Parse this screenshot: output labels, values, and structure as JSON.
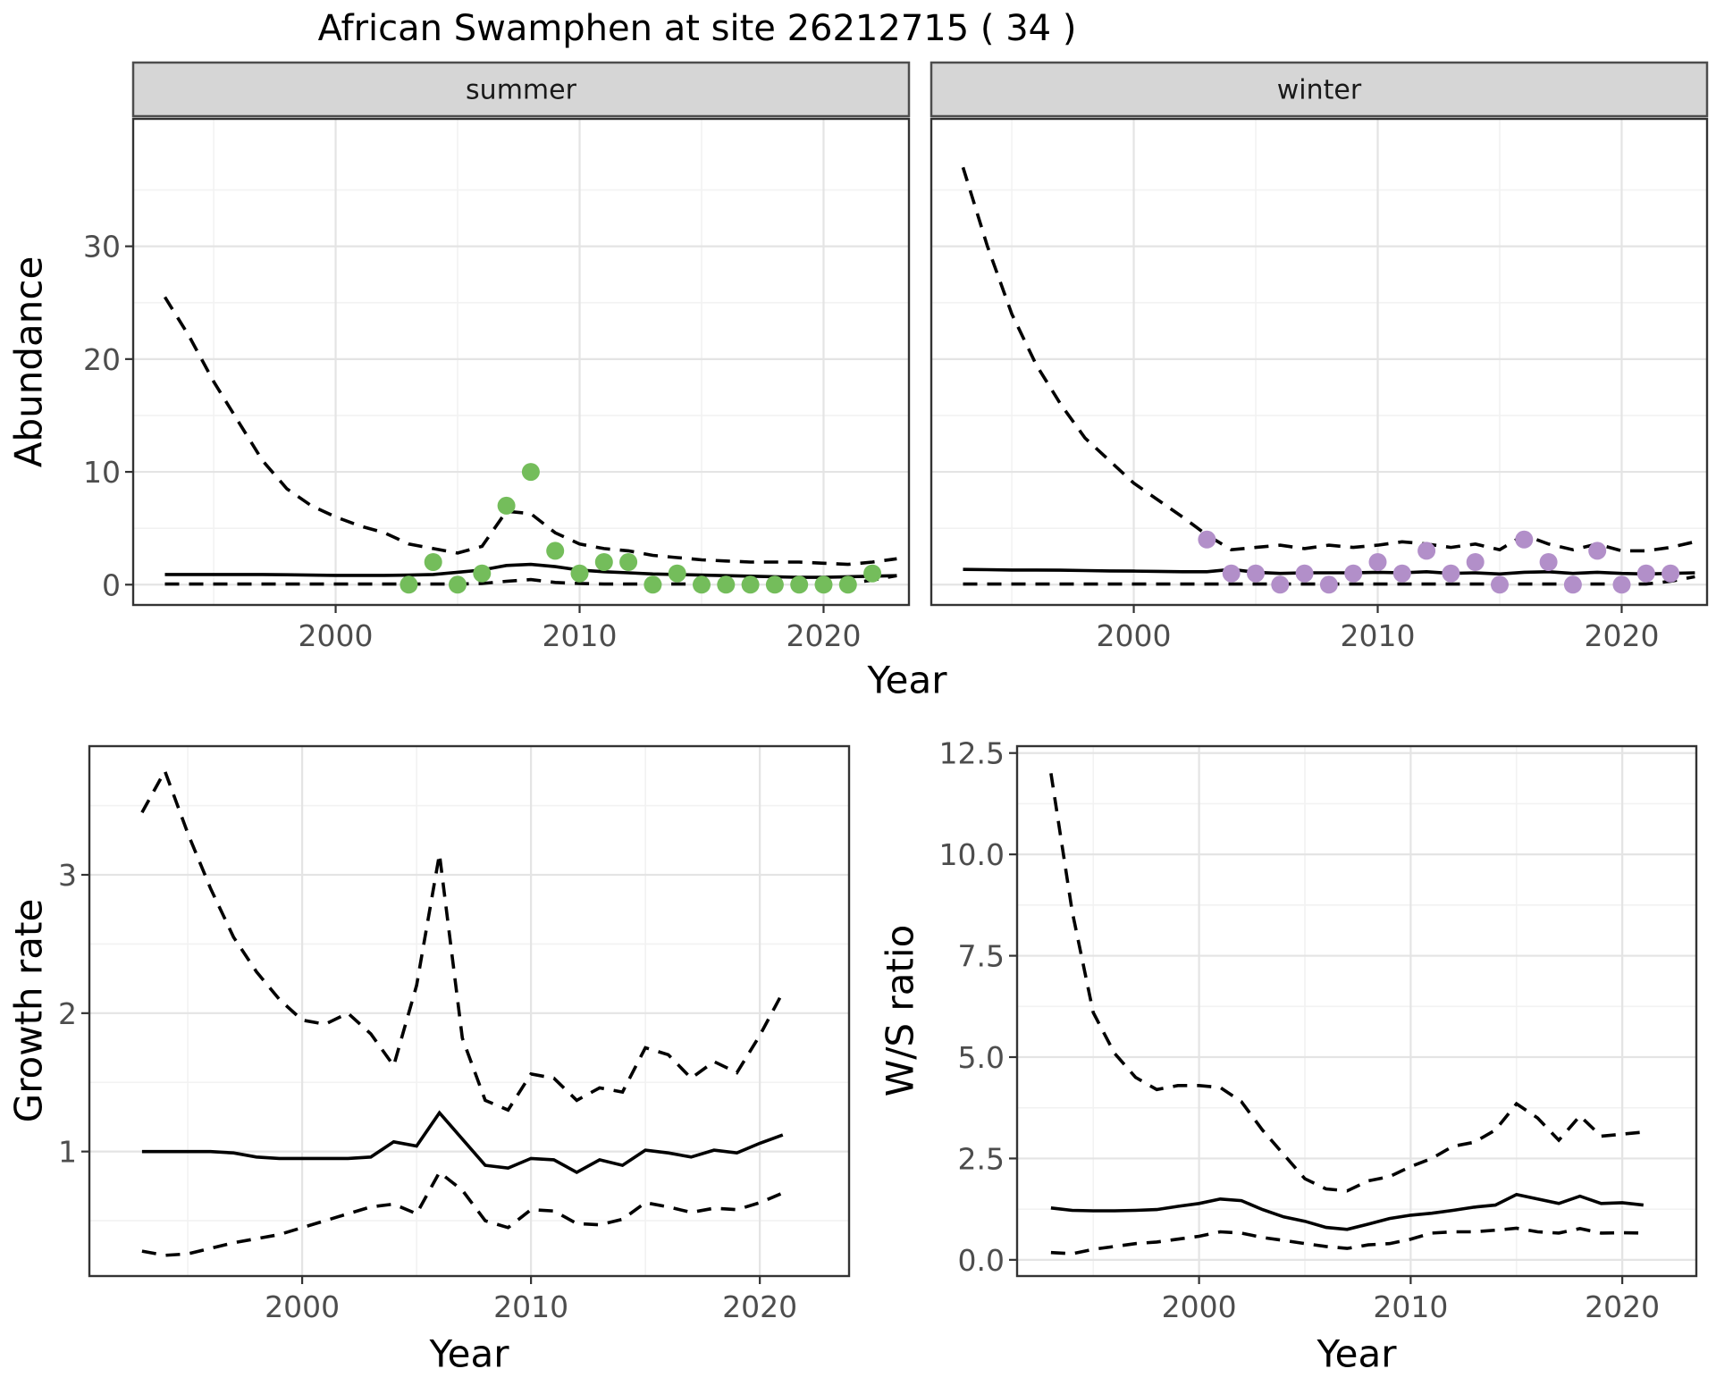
{
  "header": {
    "title": "African Swamphen at site 26212715 ( 34 )"
  },
  "colors": {
    "background": "#ffffff",
    "line": "#000000",
    "points_summer": "#74BD5B",
    "points_winter": "#B28FC9",
    "grid_major": "#E4E4E4",
    "grid_minor": "#F2F2F2",
    "panel_border": "#333333",
    "strip_bg": "#D6D6D6",
    "strip_border": "#4D4D4D",
    "tick_text": "#4D4D4D"
  },
  "chart_data": [
    {
      "id": "abundance-summer",
      "type": "line+scatter",
      "facet_label": "summer",
      "xlabel": "Year",
      "ylabel": "Abundance",
      "xlim": [
        1991.7,
        2023.5
      ],
      "ylim": [
        -1.8,
        41.3
      ],
      "x_ticks": {
        "values": [
          2000,
          2010,
          2020
        ],
        "labels": [
          "2000",
          "2010",
          "2020"
        ]
      },
      "y_ticks": {
        "values": [
          0,
          10,
          20,
          30
        ],
        "labels": [
          "0",
          "10",
          "20",
          "30"
        ]
      },
      "series": [
        {
          "name": "upper-ci",
          "style": "dashed",
          "x": [
            1993,
            1994,
            1995,
            1996,
            1997,
            1998,
            1999,
            2000,
            2001,
            2002,
            2003,
            2004,
            2005,
            2006,
            2007,
            2008,
            2009,
            2010,
            2011,
            2012,
            2013,
            2014,
            2015,
            2016,
            2017,
            2018,
            2019,
            2020,
            2021,
            2022,
            2023
          ],
          "y": [
            25.5,
            22,
            18,
            14.5,
            11,
            8.5,
            7,
            6,
            5.2,
            4.6,
            3.6,
            3.2,
            2.8,
            3.4,
            6.5,
            6.3,
            4.6,
            3.6,
            3.2,
            3.0,
            2.6,
            2.4,
            2.2,
            2.1,
            2.0,
            2.0,
            2.0,
            1.9,
            1.8,
            2.0,
            2.3
          ]
        },
        {
          "name": "median",
          "style": "solid",
          "x": [
            1993,
            1994,
            1995,
            1996,
            1997,
            1998,
            1999,
            2000,
            2001,
            2002,
            2003,
            2004,
            2005,
            2006,
            2007,
            2008,
            2009,
            2010,
            2011,
            2012,
            2013,
            2014,
            2015,
            2016,
            2017,
            2018,
            2019,
            2020,
            2021,
            2022,
            2023
          ],
          "y": [
            0.9,
            0.9,
            0.9,
            0.9,
            0.9,
            0.88,
            0.85,
            0.82,
            0.82,
            0.82,
            0.85,
            0.9,
            1.1,
            1.3,
            1.7,
            1.8,
            1.6,
            1.3,
            1.15,
            1.05,
            0.95,
            0.9,
            0.85,
            0.8,
            0.75,
            0.7,
            0.65,
            0.65,
            0.7,
            0.75,
            0.8
          ]
        },
        {
          "name": "lower-ci",
          "style": "dashed",
          "x": [
            1993,
            1994,
            1995,
            1996,
            1997,
            1998,
            1999,
            2000,
            2001,
            2002,
            2003,
            2004,
            2005,
            2006,
            2007,
            2008,
            2009,
            2010,
            2011,
            2012,
            2013,
            2014,
            2015,
            2016,
            2017,
            2018,
            2019,
            2020,
            2021,
            2022,
            2023
          ],
          "y": [
            0.05,
            0.05,
            0.05,
            0.05,
            0.05,
            0.05,
            0.05,
            0.05,
            0.05,
            0.05,
            0.05,
            0.05,
            0.05,
            0.1,
            0.3,
            0.45,
            0.2,
            0.1,
            0.05,
            0.05,
            0.05,
            0.05,
            0.05,
            0.05,
            0.05,
            0.05,
            0.05,
            0.05,
            0.1,
            0.4,
            0.8
          ]
        },
        {
          "name": "observed-counts",
          "style": "points",
          "color": "#74BD5B",
          "x": [
            2003,
            2004,
            2005,
            2006,
            2007,
            2008,
            2009,
            2010,
            2011,
            2012,
            2013,
            2014,
            2015,
            2016,
            2017,
            2018,
            2019,
            2020,
            2021,
            2022
          ],
          "y": [
            0,
            2,
            0,
            1,
            7,
            10,
            3,
            1,
            2,
            2,
            0,
            1,
            0,
            0,
            0,
            0,
            0,
            0,
            0,
            1
          ]
        }
      ]
    },
    {
      "id": "abundance-winter",
      "type": "line+scatter",
      "facet_label": "winter",
      "xlabel": "Year",
      "ylabel": "Abundance",
      "xlim": [
        1991.7,
        2023.5
      ],
      "ylim": [
        -1.8,
        41.3
      ],
      "x_ticks": {
        "values": [
          2000,
          2010,
          2020
        ],
        "labels": [
          "2000",
          "2010",
          "2020"
        ]
      },
      "y_ticks": {
        "values": [
          0,
          10,
          20,
          30
        ],
        "labels": [
          "0",
          "10",
          "20",
          "30"
        ]
      },
      "series": [
        {
          "name": "upper-ci",
          "style": "dashed",
          "x": [
            1993,
            1994,
            1995,
            1996,
            1997,
            1998,
            1999,
            2000,
            2001,
            2002,
            2003,
            2004,
            2005,
            2006,
            2007,
            2008,
            2009,
            2010,
            2011,
            2012,
            2013,
            2014,
            2015,
            2016,
            2017,
            2018,
            2019,
            2020,
            2021,
            2022,
            2023
          ],
          "y": [
            37,
            30,
            24,
            19.5,
            16,
            13,
            11,
            9,
            7.5,
            6,
            4.4,
            3.1,
            3.3,
            3.5,
            3.2,
            3.5,
            3.3,
            3.5,
            3.8,
            3.6,
            3.3,
            3.6,
            3.1,
            4.4,
            3.6,
            3.1,
            3.6,
            3.0,
            3.0,
            3.3,
            3.8
          ]
        },
        {
          "name": "median",
          "style": "solid",
          "x": [
            1993,
            1994,
            1995,
            1996,
            1997,
            1998,
            1999,
            2000,
            2001,
            2002,
            2003,
            2004,
            2005,
            2006,
            2007,
            2008,
            2009,
            2010,
            2011,
            2012,
            2013,
            2014,
            2015,
            2016,
            2017,
            2018,
            2019,
            2020,
            2021,
            2022,
            2023
          ],
          "y": [
            1.35,
            1.33,
            1.3,
            1.3,
            1.28,
            1.25,
            1.22,
            1.2,
            1.18,
            1.15,
            1.15,
            1.35,
            1.1,
            1.0,
            1.05,
            1.05,
            1.05,
            1.1,
            1.05,
            1.15,
            1.0,
            1.05,
            0.95,
            1.1,
            1.15,
            1.0,
            1.1,
            1.0,
            0.95,
            1.0,
            1.05
          ]
        },
        {
          "name": "lower-ci",
          "style": "dashed",
          "x": [
            1993,
            1994,
            1995,
            1996,
            1997,
            1998,
            1999,
            2000,
            2001,
            2002,
            2003,
            2004,
            2005,
            2006,
            2007,
            2008,
            2009,
            2010,
            2011,
            2012,
            2013,
            2014,
            2015,
            2016,
            2017,
            2018,
            2019,
            2020,
            2021,
            2022,
            2023
          ],
          "y": [
            0.05,
            0.05,
            0.05,
            0.05,
            0.05,
            0.05,
            0.05,
            0.05,
            0.05,
            0.05,
            0.05,
            0.05,
            0.05,
            0.05,
            0.05,
            0.05,
            0.05,
            0.05,
            0.05,
            0.05,
            0.05,
            0.05,
            0.05,
            0.05,
            0.05,
            0.05,
            0.05,
            0.05,
            0.05,
            0.3,
            0.7
          ]
        },
        {
          "name": "observed-counts",
          "style": "points",
          "color": "#B28FC9",
          "x": [
            2003,
            2004,
            2005,
            2006,
            2007,
            2008,
            2009,
            2010,
            2011,
            2012,
            2013,
            2014,
            2015,
            2016,
            2017,
            2018,
            2019,
            2020,
            2021,
            2022
          ],
          "y": [
            4,
            1,
            1,
            0,
            1,
            0,
            1,
            2,
            1,
            3,
            1,
            2,
            0,
            4,
            2,
            0,
            3,
            0,
            1,
            1
          ]
        }
      ]
    },
    {
      "id": "growth-rate",
      "type": "line",
      "xlabel": "Year",
      "ylabel": "Growth rate",
      "xlim": [
        1990.7,
        2023.9
      ],
      "ylim": [
        0.1,
        3.93
      ],
      "x_ticks": {
        "values": [
          2000,
          2010,
          2020
        ],
        "labels": [
          "2000",
          "2010",
          "2020"
        ]
      },
      "y_ticks": {
        "values": [
          1,
          2,
          3
        ],
        "labels": [
          "1",
          "2",
          "3"
        ]
      },
      "series": [
        {
          "name": "upper-ci",
          "style": "dashed",
          "x": [
            1993,
            1994,
            1995,
            1996,
            1997,
            1998,
            1999,
            2000,
            2001,
            2002,
            2003,
            2004,
            2005,
            2006,
            2007,
            2008,
            2009,
            2010,
            2011,
            2012,
            2013,
            2014,
            2015,
            2016,
            2017,
            2018,
            2019,
            2020,
            2021
          ],
          "y": [
            3.45,
            3.75,
            3.3,
            2.9,
            2.55,
            2.3,
            2.1,
            1.95,
            1.92,
            2.0,
            1.85,
            1.62,
            2.2,
            3.15,
            1.82,
            1.37,
            1.3,
            1.56,
            1.53,
            1.37,
            1.46,
            1.43,
            1.75,
            1.7,
            1.53,
            1.65,
            1.57,
            1.84,
            2.15
          ]
        },
        {
          "name": "median",
          "style": "solid",
          "x": [
            1993,
            1994,
            1995,
            1996,
            1997,
            1998,
            1999,
            2000,
            2001,
            2002,
            2003,
            2004,
            2005,
            2006,
            2007,
            2008,
            2009,
            2010,
            2011,
            2012,
            2013,
            2014,
            2015,
            2016,
            2017,
            2018,
            2019,
            2020,
            2021
          ],
          "y": [
            1.0,
            1.0,
            1.0,
            1.0,
            0.99,
            0.96,
            0.95,
            0.95,
            0.95,
            0.95,
            0.96,
            1.07,
            1.04,
            1.28,
            1.09,
            0.9,
            0.88,
            0.95,
            0.94,
            0.85,
            0.94,
            0.9,
            1.01,
            0.99,
            0.96,
            1.01,
            0.99,
            1.06,
            1.12
          ]
        },
        {
          "name": "lower-ci",
          "style": "dashed",
          "x": [
            1993,
            1994,
            1995,
            1996,
            1997,
            1998,
            1999,
            2000,
            2001,
            2002,
            2003,
            2004,
            2005,
            2006,
            2007,
            2008,
            2009,
            2010,
            2011,
            2012,
            2013,
            2014,
            2015,
            2016,
            2017,
            2018,
            2019,
            2020,
            2021
          ],
          "y": [
            0.28,
            0.25,
            0.26,
            0.3,
            0.34,
            0.37,
            0.4,
            0.45,
            0.5,
            0.55,
            0.6,
            0.62,
            0.55,
            0.85,
            0.72,
            0.5,
            0.45,
            0.58,
            0.57,
            0.48,
            0.47,
            0.51,
            0.63,
            0.6,
            0.56,
            0.59,
            0.58,
            0.63,
            0.7
          ]
        }
      ]
    },
    {
      "id": "ws-ratio",
      "type": "line",
      "xlabel": "Year",
      "ylabel": "W/S ratio",
      "xlim": [
        1991.4,
        2023.5
      ],
      "ylim": [
        -0.4,
        12.67
      ],
      "x_ticks": {
        "values": [
          2000,
          2010,
          2020
        ],
        "labels": [
          "2000",
          "2010",
          "2020"
        ]
      },
      "y_ticks": {
        "values": [
          0,
          2.5,
          5,
          7.5,
          10,
          12.5
        ],
        "labels": [
          "0.0",
          "2.5",
          "5.0",
          "7.5",
          "10.0",
          "12.5"
        ]
      },
      "series": [
        {
          "name": "upper-ci",
          "style": "dashed",
          "x": [
            1993,
            1994,
            1995,
            1996,
            1997,
            1998,
            1999,
            2000,
            2001,
            2002,
            2003,
            2004,
            2005,
            2006,
            2007,
            2008,
            2009,
            2010,
            2011,
            2012,
            2013,
            2014,
            2015,
            2016,
            2017,
            2018,
            2019,
            2020,
            2021
          ],
          "y": [
            12.0,
            8.6,
            6.1,
            5.1,
            4.5,
            4.2,
            4.3,
            4.3,
            4.25,
            3.9,
            3.2,
            2.6,
            2.0,
            1.75,
            1.7,
            1.95,
            2.05,
            2.3,
            2.5,
            2.8,
            2.9,
            3.2,
            3.85,
            3.5,
            2.95,
            3.55,
            3.05,
            3.1,
            3.15
          ]
        },
        {
          "name": "median",
          "style": "solid",
          "x": [
            1993,
            1994,
            1995,
            1996,
            1997,
            1998,
            1999,
            2000,
            2001,
            2002,
            2003,
            2004,
            2005,
            2006,
            2007,
            2008,
            2009,
            2010,
            2011,
            2012,
            2013,
            2014,
            2015,
            2016,
            2017,
            2018,
            2019,
            2020,
            2021
          ],
          "y": [
            1.28,
            1.22,
            1.21,
            1.21,
            1.22,
            1.24,
            1.32,
            1.39,
            1.5,
            1.46,
            1.24,
            1.06,
            0.95,
            0.8,
            0.75,
            0.88,
            1.02,
            1.1,
            1.15,
            1.22,
            1.3,
            1.35,
            1.61,
            1.5,
            1.39,
            1.57,
            1.39,
            1.41,
            1.35
          ]
        },
        {
          "name": "lower-ci",
          "style": "dashed",
          "x": [
            1993,
            1994,
            1995,
            1996,
            1997,
            1998,
            1999,
            2000,
            2001,
            2002,
            2003,
            2004,
            2005,
            2006,
            2007,
            2008,
            2009,
            2010,
            2011,
            2012,
            2013,
            2014,
            2015,
            2016,
            2017,
            2018,
            2019,
            2020,
            2021
          ],
          "y": [
            0.18,
            0.15,
            0.26,
            0.33,
            0.4,
            0.44,
            0.51,
            0.58,
            0.69,
            0.66,
            0.55,
            0.48,
            0.4,
            0.33,
            0.28,
            0.37,
            0.4,
            0.51,
            0.66,
            0.69,
            0.69,
            0.73,
            0.78,
            0.69,
            0.66,
            0.77,
            0.66,
            0.67,
            0.66
          ]
        }
      ]
    }
  ]
}
